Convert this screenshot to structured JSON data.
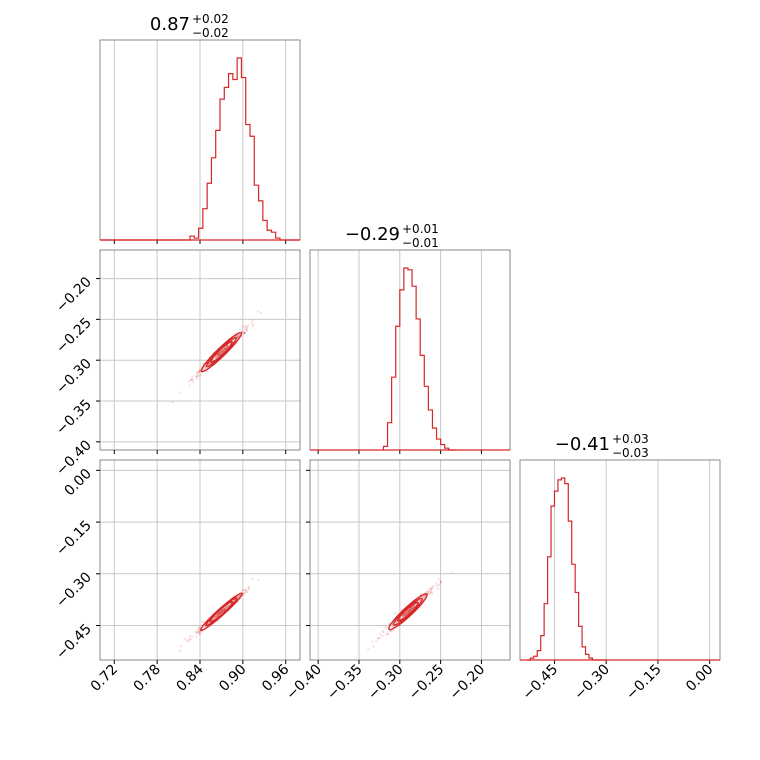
{
  "chart_data": {
    "type": "corner",
    "color": "#d62728",
    "grid": true,
    "parameters": [
      {
        "title": {
          "median": "0.87",
          "plus": "+0.02",
          "minus": "−0.02"
        },
        "range": [
          0.7,
          0.98
        ],
        "ticks": [
          0.72,
          0.78,
          0.84,
          0.9,
          0.96
        ],
        "tick_labels": [
          "0.72",
          "0.78",
          "0.84",
          "0.90",
          "0.96"
        ],
        "histogram": {
          "bin_edges": [
            0.7,
            0.706,
            0.712,
            0.718,
            0.724,
            0.73,
            0.736,
            0.742,
            0.748,
            0.754,
            0.76,
            0.766,
            0.772,
            0.778,
            0.784,
            0.79,
            0.796,
            0.802,
            0.808,
            0.814,
            0.82,
            0.826,
            0.832,
            0.838,
            0.844,
            0.85,
            0.856,
            0.862,
            0.868,
            0.874,
            0.88,
            0.886,
            0.892,
            0.898,
            0.904,
            0.91,
            0.916,
            0.922,
            0.928,
            0.934,
            0.94,
            0.946,
            0.952,
            0.958,
            0.964,
            0.97,
            0.976,
            0.98
          ],
          "counts": [
            0,
            0,
            0,
            0,
            0,
            0,
            0,
            0,
            0,
            0,
            0,
            0,
            0,
            0,
            0,
            0,
            0,
            0,
            0,
            0,
            0,
            2,
            1,
            6,
            16,
            29,
            42,
            56,
            72,
            78,
            85,
            82,
            93,
            83,
            59,
            53,
            28,
            20,
            10,
            5,
            4,
            1,
            0,
            0,
            0,
            0,
            0
          ]
        }
      },
      {
        "title": {
          "median": "−0.29",
          "plus": "+0.01",
          "minus": "−0.01"
        },
        "range": [
          -0.41,
          -0.165
        ],
        "ticks": [
          -0.4,
          -0.35,
          -0.3,
          -0.25,
          -0.2
        ],
        "tick_labels": [
          "−0.40",
          "−0.35",
          "−0.30",
          "−0.25",
          "−0.20"
        ],
        "histogram": {
          "bin_edges": [
            -0.32,
            -0.315,
            -0.31,
            -0.305,
            -0.3,
            -0.295,
            -0.29,
            -0.285,
            -0.28,
            -0.275,
            -0.27,
            -0.265,
            -0.26,
            -0.255,
            -0.25,
            -0.245,
            -0.24,
            -0.235,
            -0.23
          ],
          "counts": [
            2,
            15,
            40,
            68,
            88,
            100,
            99,
            90,
            72,
            52,
            35,
            22,
            12,
            6,
            3,
            1,
            0,
            0
          ]
        }
      },
      {
        "title": {
          "median": "−0.41",
          "plus": "+0.03",
          "minus": "−0.03"
        },
        "range": [
          -0.55,
          0.03
        ],
        "ticks": [
          -0.45,
          -0.3,
          -0.15,
          0.0
        ],
        "tick_labels": [
          "−0.45",
          "−0.30",
          "−0.15",
          "0.00"
        ],
        "histogram": {
          "bin_edges": [
            -0.53,
            -0.52,
            -0.51,
            -0.5,
            -0.49,
            -0.48,
            -0.47,
            -0.46,
            -0.45,
            -0.44,
            -0.43,
            -0.42,
            -0.41,
            -0.4,
            -0.39,
            -0.38,
            -0.37,
            -0.36,
            -0.35,
            -0.34,
            -0.33,
            -0.32,
            -0.31,
            -0.3
          ],
          "counts": [
            0,
            1,
            2,
            5,
            13,
            30,
            55,
            82,
            90,
            96,
            97,
            94,
            74,
            51,
            36,
            18,
            7,
            3,
            1,
            0,
            0,
            0,
            0
          ]
        }
      }
    ],
    "pairs": [
      {
        "row": 1,
        "col": 0,
        "center": [
          0.87,
          -0.29
        ],
        "extent": 0.048,
        "slope": 0.85,
        "width_frac": 0.15,
        "contour_levels": [
          0.3,
          0.6,
          0.95
        ]
      },
      {
        "row": 2,
        "col": 0,
        "center": [
          0.87,
          -0.41
        ],
        "extent": 0.05,
        "slope": 1.85,
        "width_frac": 0.12,
        "contour_levels": [
          0.3,
          0.6,
          0.95
        ]
      },
      {
        "row": 2,
        "col": 1,
        "center": [
          -0.29,
          -0.41
        ],
        "extent": 0.04,
        "slope": 2.2,
        "width_frac": 0.17,
        "contour_levels": [
          0.3,
          0.6,
          0.95
        ]
      }
    ]
  }
}
